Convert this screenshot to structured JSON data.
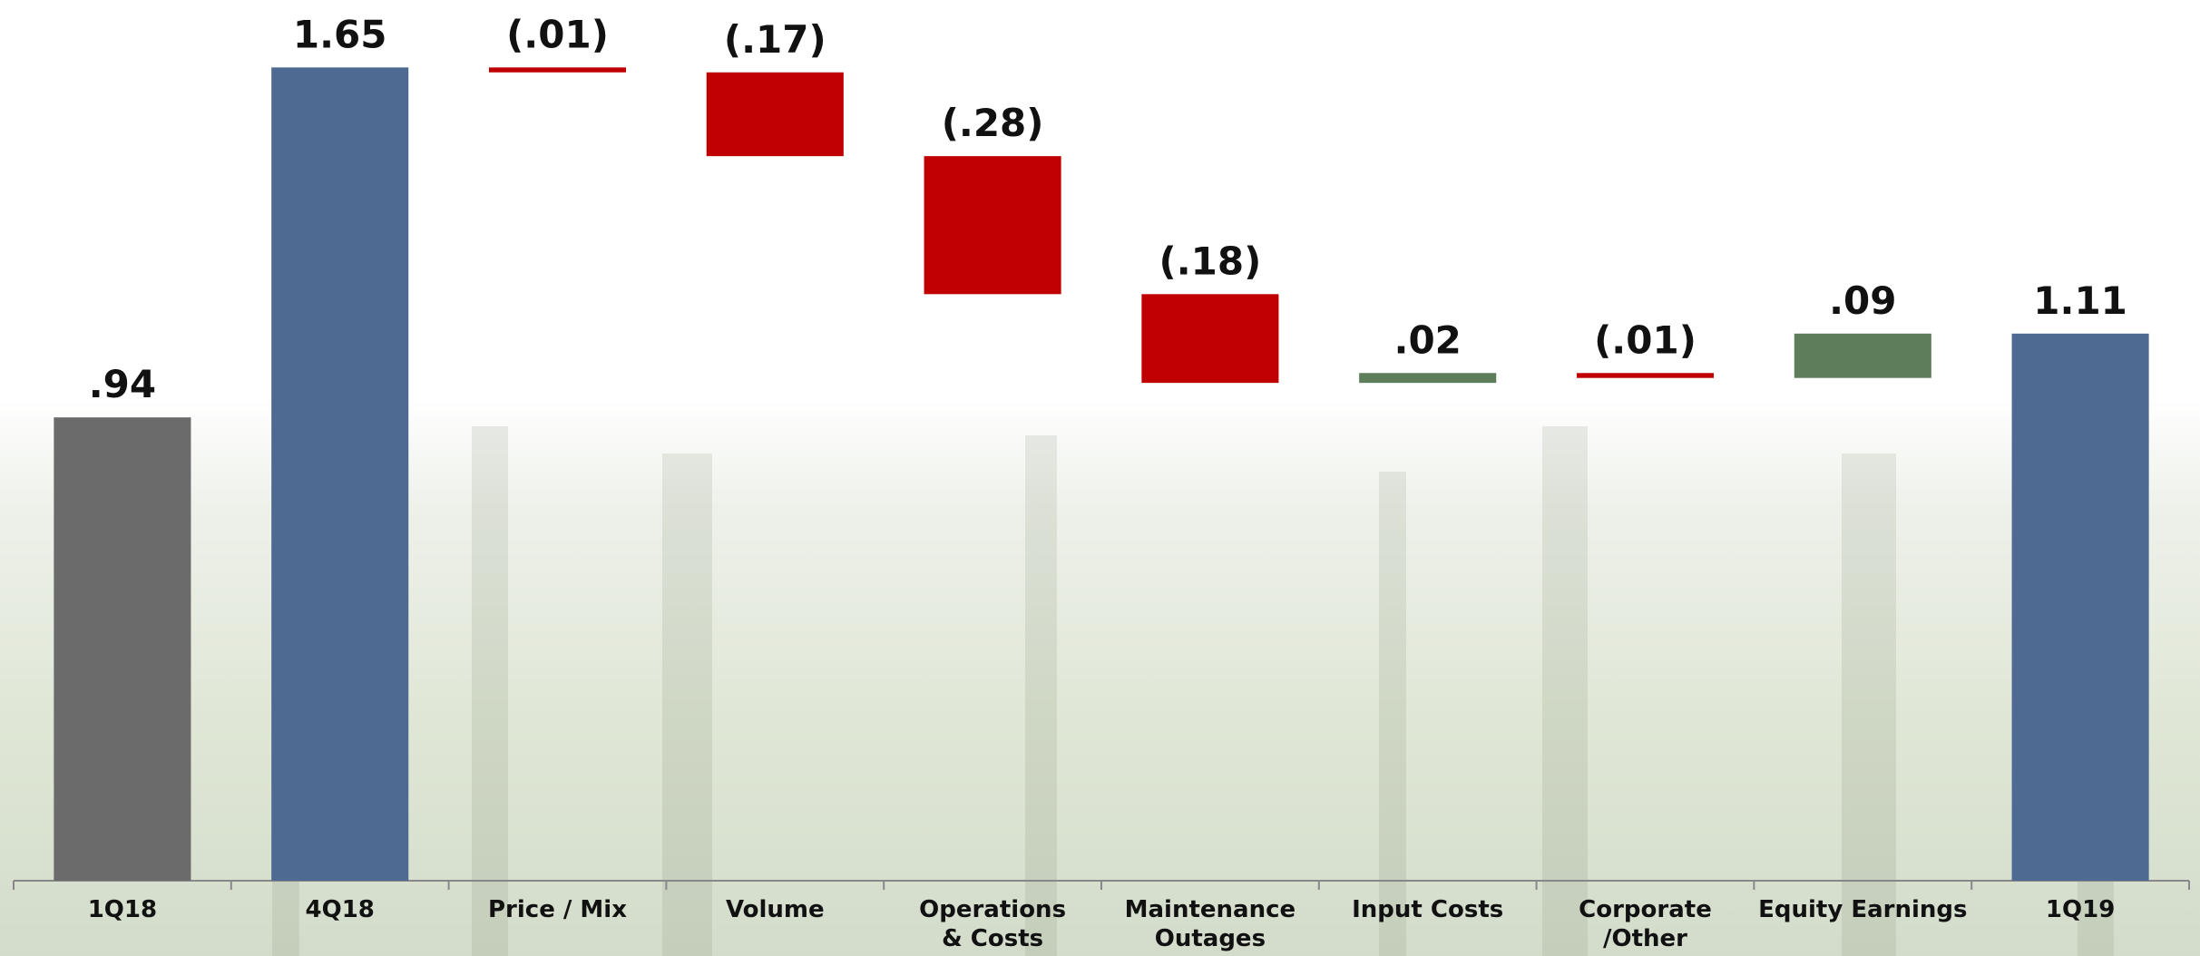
{
  "chart_data": {
    "type": "waterfall",
    "categories": [
      "1Q18",
      "4Q18",
      "Price / Mix",
      "Volume",
      "Operations\n& Costs",
      "Maintenance\nOutages",
      "Input Costs",
      "Corporate\n/Other",
      "Equity Earnings",
      "1Q19"
    ],
    "values": [
      0.94,
      1.65,
      -0.01,
      -0.17,
      -0.28,
      -0.18,
      0.02,
      -0.01,
      0.09,
      1.11
    ],
    "value_labels": [
      ".94",
      "1.65",
      "(.01)",
      "(.17)",
      "(.28)",
      "(.18)",
      ".02",
      "(.01)",
      ".09",
      "1.11"
    ],
    "totals": [
      true,
      true,
      false,
      false,
      false,
      false,
      false,
      false,
      false,
      true
    ],
    "colors": [
      "#6b6b6b",
      "#4f6a92",
      "#c00000",
      "#c00000",
      "#c00000",
      "#c00000",
      "#5e7d5a",
      "#c00000",
      "#5e7d5a",
      "#4f6a92"
    ],
    "ylim": [
      0,
      1.75
    ]
  }
}
